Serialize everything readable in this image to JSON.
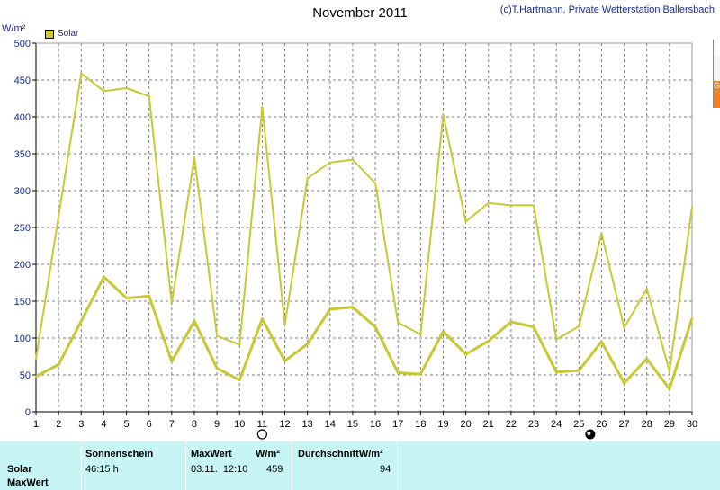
{
  "header": {
    "title": "November 2011",
    "credit": "(c)T.Hartmann, Private Wetterstation Ballersbach",
    "unit": "W/m²"
  },
  "legend": {
    "label": "Solar",
    "color": "#c8c832"
  },
  "chart_data": {
    "type": "line",
    "xlabel": "",
    "ylabel": "W/m²",
    "ylim": [
      0,
      500
    ],
    "y_ticks": [
      0,
      50,
      100,
      150,
      200,
      250,
      300,
      350,
      400,
      450,
      500
    ],
    "x_ticks": [
      1,
      2,
      3,
      4,
      5,
      6,
      7,
      8,
      9,
      10,
      11,
      12,
      13,
      14,
      15,
      16,
      17,
      18,
      19,
      20,
      21,
      22,
      23,
      24,
      25,
      26,
      27,
      28,
      29,
      30
    ],
    "grid": true,
    "legend_position": "top-left",
    "moon_phases": [
      {
        "day": 11,
        "phase": "full"
      },
      {
        "day": 25.5,
        "phase": "new"
      }
    ],
    "series": [
      {
        "name": "Solar",
        "role": "max",
        "color": "#c8c832",
        "x": [
          1,
          2,
          3,
          4,
          5,
          6,
          7,
          8,
          9,
          10,
          11,
          12,
          13,
          14,
          15,
          16,
          17,
          18,
          19,
          20,
          21,
          22,
          23,
          24,
          25,
          26,
          27,
          28,
          29,
          30
        ],
        "values": [
          72,
          265,
          459,
          435,
          439,
          428,
          147,
          345,
          103,
          91,
          413,
          118,
          317,
          338,
          342,
          310,
          121,
          105,
          403,
          258,
          283,
          280,
          280,
          98,
          116,
          242,
          114,
          167,
          55,
          278
        ]
      },
      {
        "name": "Solar",
        "role": "average",
        "color": "#c8c832",
        "x": [
          1,
          2,
          3,
          4,
          5,
          6,
          7,
          8,
          9,
          10,
          11,
          12,
          13,
          14,
          15,
          16,
          17,
          18,
          19,
          20,
          21,
          22,
          23,
          24,
          25,
          26,
          27,
          28,
          29,
          30
        ],
        "values": [
          48,
          64,
          123,
          183,
          154,
          157,
          68,
          123,
          59,
          43,
          126,
          69,
          92,
          139,
          142,
          115,
          53,
          51,
          109,
          78,
          96,
          122,
          115,
          54,
          56,
          95,
          39,
          72,
          31,
          127
        ]
      }
    ]
  },
  "stats": {
    "row_label_1": "Solar",
    "row_label_2": "MaxWert",
    "sunshine_header": "Sonnenschein",
    "sunshine_value": "46:15 h",
    "max_header": "MaxWert",
    "max_unit": "W/m²",
    "max_time": "03.11.  12:10",
    "max_value": "459",
    "avg_header": "DurchschnittW/m²",
    "avg_value": "94"
  },
  "colors": {
    "line": "#c8c832",
    "stats_bg": "#c7f4f4",
    "axis_text": "#1a2a8a",
    "grid": "#808080"
  }
}
